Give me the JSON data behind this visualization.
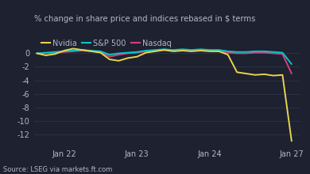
{
  "title": "% change in share price and indices rebased in $ terms",
  "source": "Source: LSEG via markets.ft.com",
  "background_color": "#1e2130",
  "plot_bg_color": "#1e2130",
  "text_color": "#b0b8c8",
  "grid_color": "#2d3348",
  "ylim": [
    -13.5,
    1.2
  ],
  "yticks": [
    0,
    -2,
    -4,
    -6,
    -8,
    -10,
    -12
  ],
  "xlabel_dates": [
    "Jan 22",
    "Jan 23",
    "Jan 24",
    "Jan 27"
  ],
  "series": {
    "nvidia": {
      "label": "Nvidia",
      "color": "#e8d44d",
      "data_x": [
        0,
        1,
        2,
        3,
        4,
        5,
        6,
        7,
        8,
        9,
        10,
        11,
        12,
        13,
        14,
        15,
        16,
        17,
        18,
        19,
        20,
        21,
        22,
        23,
        24,
        25,
        26,
        27,
        28
      ],
      "data_y": [
        0,
        -0.3,
        -0.1,
        0.4,
        0.7,
        0.5,
        0.3,
        0.1,
        -0.9,
        -1.1,
        -0.7,
        -0.5,
        0.1,
        0.3,
        0.5,
        0.3,
        0.4,
        0.3,
        0.4,
        0.3,
        0.3,
        -0.2,
        -2.8,
        -3.0,
        -3.2,
        -3.1,
        -3.3,
        -3.2,
        -13.0
      ]
    },
    "sp500": {
      "label": "S&P 500",
      "color": "#00c8c8",
      "data_x": [
        0,
        1,
        2,
        3,
        4,
        5,
        6,
        7,
        8,
        9,
        10,
        11,
        12,
        13,
        14,
        15,
        16,
        17,
        18,
        19,
        20,
        21,
        22,
        23,
        24,
        25,
        26,
        27,
        28
      ],
      "data_y": [
        0,
        0.1,
        0.2,
        0.3,
        0.4,
        0.5,
        0.4,
        0.3,
        -0.2,
        0.0,
        0.1,
        0.2,
        0.4,
        0.5,
        0.6,
        0.5,
        0.6,
        0.5,
        0.6,
        0.5,
        0.5,
        0.3,
        0.2,
        0.2,
        0.3,
        0.3,
        0.2,
        0.1,
        -1.6
      ]
    },
    "nasdaq": {
      "label": "Nasdaq",
      "color": "#d44080",
      "data_x": [
        0,
        1,
        2,
        3,
        4,
        5,
        6,
        7,
        8,
        9,
        10,
        11,
        12,
        13,
        14,
        15,
        16,
        17,
        18,
        19,
        20,
        21,
        22,
        23,
        24,
        25,
        26,
        27,
        28
      ],
      "data_y": [
        0,
        0.0,
        0.1,
        0.2,
        0.3,
        0.4,
        0.3,
        0.2,
        -0.5,
        -0.2,
        0.0,
        0.1,
        0.3,
        0.4,
        0.5,
        0.4,
        0.5,
        0.4,
        0.5,
        0.4,
        0.3,
        0.1,
        0.0,
        0.0,
        0.1,
        0.1,
        0.0,
        -0.1,
        -3.0
      ]
    }
  },
  "x_tick_positions": [
    3,
    11,
    19,
    28
  ],
  "line_width": 1.4,
  "title_fontsize": 7.2,
  "legend_fontsize": 7,
  "tick_fontsize": 7,
  "source_fontsize": 6
}
